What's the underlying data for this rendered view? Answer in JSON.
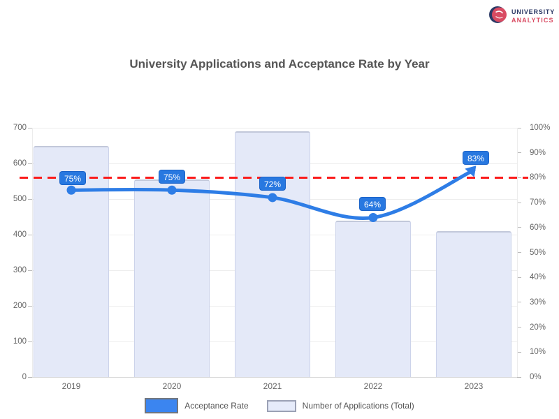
{
  "brand": {
    "icon": "globe-icon",
    "line1": "UNIVERSITY",
    "line2": "ANALYTICS",
    "navy": "#2d3a66",
    "red": "#d94b62"
  },
  "chart_data": {
    "type": "bar",
    "combo": "bar+line, dual axis",
    "title": "University Applications and Acceptance Rate by Year",
    "categories": [
      "2019",
      "2020",
      "2021",
      "2022",
      "2023"
    ],
    "series": [
      {
        "name": "Acceptance Rate",
        "type": "line",
        "axis": "right",
        "unit": "%",
        "color": "#2e7de6",
        "values": [
          75,
          75,
          72,
          64,
          83
        ],
        "point_labels": [
          "75%",
          "75%",
          "72%",
          "64%",
          "83%"
        ]
      },
      {
        "name": "Number of Applications (Total)",
        "type": "bar",
        "axis": "left",
        "color": "#e4e9f8",
        "border_color": "#ccd3ea",
        "values": [
          650,
          555,
          690,
          440,
          410
        ]
      }
    ],
    "threshold_line": {
      "axis": "right",
      "value": 80,
      "style": "dashed",
      "color": "#fb1b1b"
    },
    "left_axis": {
      "min": 0,
      "max": 700,
      "step": 100,
      "tick_labels": [
        "0",
        "100",
        "200",
        "300",
        "400",
        "500",
        "600",
        "700"
      ]
    },
    "right_axis": {
      "min": 0,
      "max": 100,
      "step": 10,
      "tick_labels": [
        "0%",
        "10%",
        "20%",
        "30%",
        "40%",
        "50%",
        "60%",
        "70%",
        "80%",
        "90%",
        "100%"
      ]
    },
    "legend_position": "bottom",
    "grid": true
  }
}
